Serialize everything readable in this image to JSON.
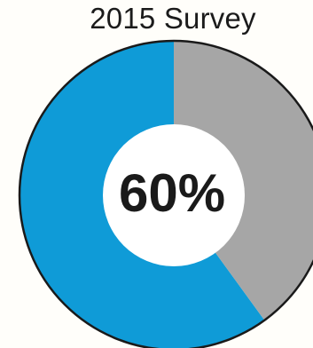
{
  "chart_data": {
    "type": "pie",
    "title": "2015 Survey",
    "center_label": "60%",
    "slices": [
      {
        "value": 60,
        "color": "#0f9bd7"
      },
      {
        "value": 40,
        "color": "#a6a6a6"
      }
    ],
    "hole_color": "#ffffff",
    "outline_color": "#1a1a1a"
  }
}
